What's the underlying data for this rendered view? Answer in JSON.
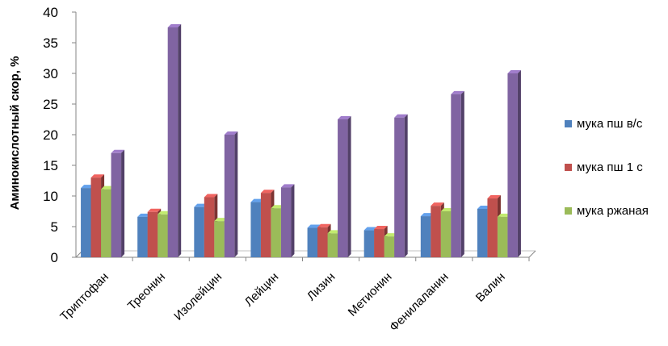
{
  "chart_data": {
    "type": "bar",
    "ylabel": "Аминокислотный скор, %",
    "ylim": [
      0,
      40
    ],
    "yticks": [
      0,
      5,
      10,
      15,
      20,
      25,
      30,
      35,
      40
    ],
    "categories": [
      "Триптофан",
      "Треонин",
      "Изолейцин",
      "Лейцин",
      "Лизин",
      "Метионин",
      "Фенилаланин",
      "Валин"
    ],
    "series": [
      {
        "name": "мука пш в/с",
        "color": "#4F81BD",
        "values": [
          11.3,
          6.6,
          8.2,
          9.0,
          4.8,
          4.4,
          6.7,
          7.9
        ]
      },
      {
        "name": "мука пш 1 с",
        "color": "#C0504D",
        "values": [
          13.0,
          7.4,
          9.8,
          10.5,
          4.9,
          4.6,
          8.4,
          9.6
        ]
      },
      {
        "name": "мука ржаная",
        "color": "#9BBB59",
        "values": [
          11.1,
          7.0,
          5.9,
          8.0,
          3.9,
          3.4,
          7.5,
          6.6
        ]
      },
      {
        "name": "",
        "color": "#8064A2",
        "values": [
          17.0,
          37.5,
          20.0,
          11.4,
          22.5,
          22.8,
          26.6,
          30.0
        ]
      }
    ],
    "grid": false,
    "legend_position": "right"
  }
}
